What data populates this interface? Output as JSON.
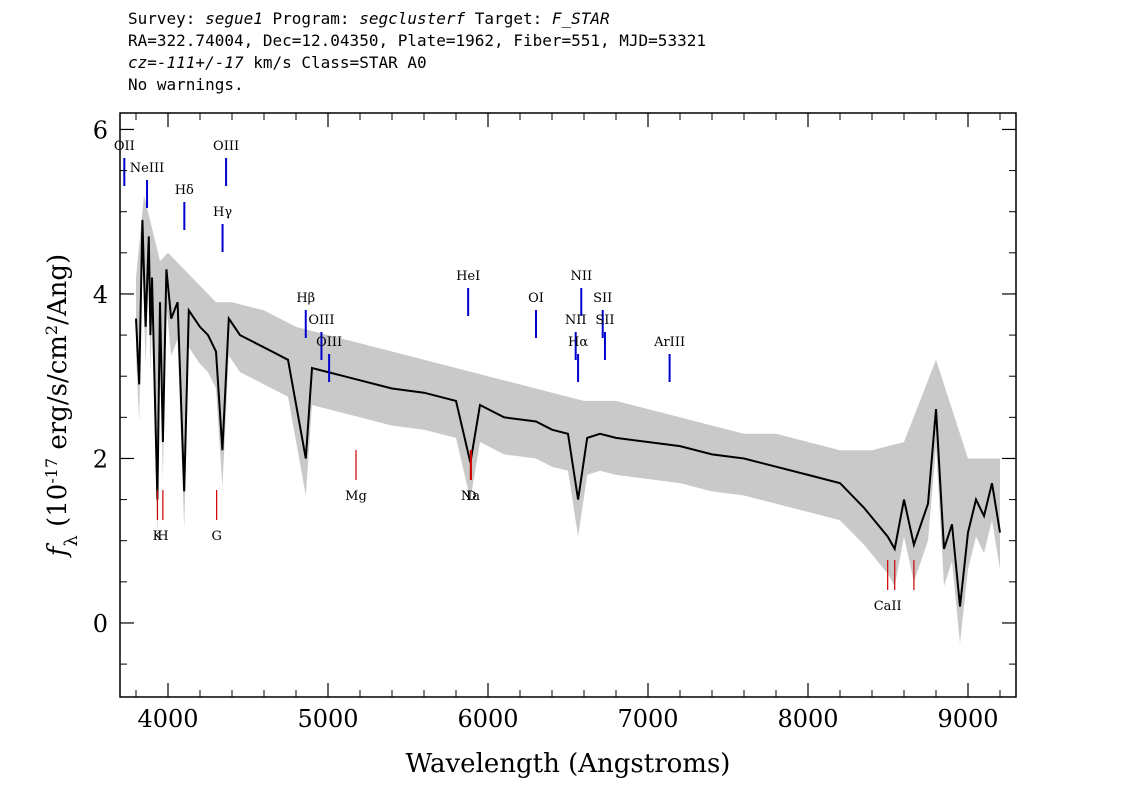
{
  "header": {
    "line1": {
      "survey_label": "Survey: ",
      "survey": "segue1",
      "program_label": " Program: ",
      "program": "segclusterf",
      "target_label": " Target: ",
      "target": "F_STAR"
    },
    "line2": "RA=322.74004, Dec=12.04350, Plate=1962, Fiber=551, MJD=53321",
    "line3": {
      "cz": "cz=-111+/-17",
      "rest": " km/s Class=STAR A0"
    },
    "line4": "No warnings."
  },
  "colors": {
    "flux": "#000000",
    "error": "#bbbbbb",
    "emission": "#0000cc",
    "absorption": "#cc0000"
  },
  "chart_data": {
    "type": "line",
    "xlabel": "Wavelength (Angstroms)",
    "ylabel": "f_λ (10^-17 erg/s/cm^2/Ang)",
    "xlim": [
      3700,
      9300
    ],
    "ylim": [
      -0.9,
      6.2
    ],
    "x_ticks": [
      4000,
      5000,
      6000,
      7000,
      8000,
      9000
    ],
    "y_ticks": [
      0,
      2,
      4,
      6
    ],
    "series": [
      {
        "style": "black",
        "points": [
          [
            3800,
            3.7
          ],
          [
            3820,
            2.9
          ],
          [
            3840,
            4.9
          ],
          [
            3860,
            3.6
          ],
          [
            3880,
            4.7
          ],
          [
            3890,
            3.5
          ],
          [
            3900,
            4.2
          ],
          [
            3934,
            1.5
          ],
          [
            3950,
            3.9
          ],
          [
            3968,
            2.2
          ],
          [
            3990,
            4.3
          ],
          [
            4020,
            3.7
          ],
          [
            4060,
            3.9
          ],
          [
            4101,
            1.6
          ],
          [
            4130,
            3.8
          ],
          [
            4200,
            3.6
          ],
          [
            4250,
            3.5
          ],
          [
            4300,
            3.3
          ],
          [
            4340,
            2.1
          ],
          [
            4380,
            3.7
          ],
          [
            4450,
            3.5
          ],
          [
            4550,
            3.4
          ],
          [
            4650,
            3.3
          ],
          [
            4750,
            3.2
          ],
          [
            4861,
            2.0
          ],
          [
            4900,
            3.1
          ],
          [
            5000,
            3.05
          ],
          [
            5100,
            3.0
          ],
          [
            5200,
            2.95
          ],
          [
            5400,
            2.85
          ],
          [
            5600,
            2.8
          ],
          [
            5800,
            2.7
          ],
          [
            5890,
            1.95
          ],
          [
            5950,
            2.65
          ],
          [
            6100,
            2.5
          ],
          [
            6300,
            2.45
          ],
          [
            6400,
            2.35
          ],
          [
            6500,
            2.3
          ],
          [
            6563,
            1.5
          ],
          [
            6620,
            2.25
          ],
          [
            6700,
            2.3
          ],
          [
            6800,
            2.25
          ],
          [
            7000,
            2.2
          ],
          [
            7200,
            2.15
          ],
          [
            7400,
            2.05
          ],
          [
            7600,
            2.0
          ],
          [
            7800,
            1.9
          ],
          [
            8000,
            1.8
          ],
          [
            8200,
            1.7
          ],
          [
            8350,
            1.4
          ],
          [
            8498,
            1.05
          ],
          [
            8542,
            0.9
          ],
          [
            8600,
            1.5
          ],
          [
            8662,
            0.95
          ],
          [
            8750,
            1.45
          ],
          [
            8800,
            2.6
          ],
          [
            8850,
            0.9
          ],
          [
            8900,
            1.2
          ],
          [
            8950,
            0.2
          ],
          [
            9000,
            1.1
          ],
          [
            9050,
            1.5
          ],
          [
            9100,
            1.3
          ],
          [
            9150,
            1.7
          ],
          [
            9200,
            1.1
          ]
        ]
      },
      {
        "style": "grey-envelope",
        "points": [
          [
            3800,
            4.2
          ],
          [
            3850,
            5.2
          ],
          [
            3900,
            4.8
          ],
          [
            3950,
            4.4
          ],
          [
            4000,
            4.5
          ],
          [
            4100,
            4.3
          ],
          [
            4200,
            4.1
          ],
          [
            4300,
            3.9
          ],
          [
            4400,
            3.9
          ],
          [
            4600,
            3.8
          ],
          [
            4800,
            3.6
          ],
          [
            5000,
            3.5
          ],
          [
            5200,
            3.4
          ],
          [
            5400,
            3.3
          ],
          [
            5600,
            3.2
          ],
          [
            5800,
            3.1
          ],
          [
            6000,
            3.0
          ],
          [
            6200,
            2.9
          ],
          [
            6400,
            2.8
          ],
          [
            6600,
            2.7
          ],
          [
            6800,
            2.7
          ],
          [
            7000,
            2.6
          ],
          [
            7200,
            2.5
          ],
          [
            7400,
            2.4
          ],
          [
            7600,
            2.3
          ],
          [
            7800,
            2.3
          ],
          [
            8000,
            2.2
          ],
          [
            8200,
            2.1
          ],
          [
            8400,
            2.1
          ],
          [
            8600,
            2.2
          ],
          [
            8800,
            3.2
          ],
          [
            9000,
            2.0
          ],
          [
            9200,
            2.0
          ]
        ]
      }
    ],
    "emission_lines": [
      {
        "label": "OII",
        "x": 3727
      },
      {
        "label": "NeIII",
        "x": 3869
      },
      {
        "label": "Hδ",
        "x": 4102
      },
      {
        "label": "Hγ",
        "x": 4341
      },
      {
        "label": "OIII",
        "x": 4363
      },
      {
        "label": "Hβ",
        "x": 4861
      },
      {
        "label": "OIII",
        "x": 4959
      },
      {
        "label": "OIII",
        "x": 5007
      },
      {
        "label": "HeI",
        "x": 5876
      },
      {
        "label": "OI",
        "x": 6300
      },
      {
        "label": "NII",
        "x": 6548
      },
      {
        "label": "Hα",
        "x": 6563
      },
      {
        "label": "NII",
        "x": 6583
      },
      {
        "label": "SII",
        "x": 6717
      },
      {
        "label": "SII",
        "x": 6731
      },
      {
        "label": "ArIII",
        "x": 7135
      }
    ],
    "absorption_lines": [
      {
        "label": "K",
        "x": 3934
      },
      {
        "label": "H",
        "x": 3968
      },
      {
        "label": "G",
        "x": 4304
      },
      {
        "label": "Mg",
        "x": 5175
      },
      {
        "label": "Na",
        "x": 5890
      },
      {
        "label": "D",
        "x": 5896
      },
      {
        "label": "CaII",
        "x": 8498
      },
      {
        "label": "",
        "x": 8542
      },
      {
        "label": "",
        "x": 8662
      }
    ]
  }
}
